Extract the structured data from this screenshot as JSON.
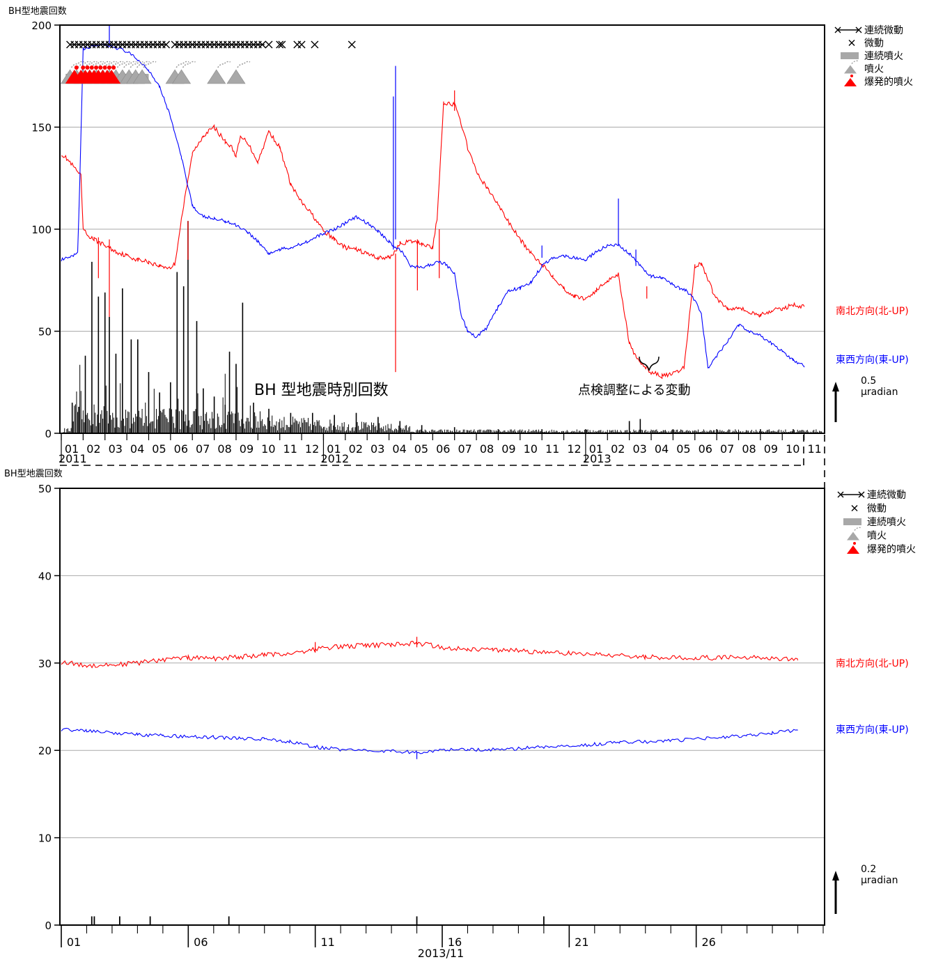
{
  "figure": {
    "top_title": "BH型地震回数",
    "bottom_title": "BH型地震回数",
    "annotation_histogram": "BH 型地震時別回数",
    "annotation_adjust": "点検調整による変動"
  },
  "colors": {
    "ns": "#ff0000",
    "ew": "#0000ff",
    "bars": "#000000",
    "grid": "#aaaaaa",
    "eruption_gray": "#a8a8a8",
    "explosive_red": "#ff0000"
  },
  "legend": {
    "items": [
      {
        "label": "連続微動",
        "icon": "x-line-x-icon"
      },
      {
        "label": "微動",
        "icon": "x-icon"
      },
      {
        "label": "連続噴火",
        "icon": "gray-bar-icon"
      },
      {
        "label": "噴火",
        "icon": "gray-volcano-icon"
      },
      {
        "label": "爆発的噴火",
        "icon": "red-volcano-icon"
      }
    ]
  },
  "chart_data": [
    {
      "type": "line",
      "ylabel": "BH型地震回数",
      "ylim": [
        0,
        200
      ],
      "yticks": [
        0,
        50,
        100,
        150,
        200
      ],
      "grid": true,
      "x_period": [
        "2011-01",
        "2013-11"
      ],
      "month_ticks": [
        "01",
        "02",
        "03",
        "04",
        "05",
        "06",
        "07",
        "08",
        "09",
        "10",
        "11",
        "12",
        "01",
        "02",
        "03",
        "04",
        "05",
        "06",
        "07",
        "08",
        "09",
        "10",
        "11",
        "12",
        "01",
        "02",
        "03",
        "04",
        "05",
        "06",
        "07",
        "08",
        "09",
        "10",
        "11"
      ],
      "year_labels": [
        "2011",
        "2012",
        "2013"
      ],
      "scale_bar": {
        "value": "0.5",
        "unit": "μradian"
      },
      "series": [
        {
          "name": "南北方向(北-UP)",
          "color": "#ff0000",
          "x_months": [
            0,
            0.3,
            0.6,
            0.9,
            1.0,
            1.2,
            1.5,
            2.0,
            2.5,
            3.0,
            3.5,
            4.0,
            4.5,
            5.0,
            5.2,
            5.5,
            6.0,
            6.5,
            7.0,
            7.5,
            7.8,
            8.0,
            8.2,
            8.5,
            9.0,
            9.5,
            10.0,
            10.5,
            11.0,
            11.5,
            12.0,
            12.5,
            13.0,
            13.5,
            14.0,
            14.5,
            15.0,
            15.2,
            15.5,
            16.0,
            16.5,
            17.0,
            17.2,
            17.5,
            18.0,
            18.3,
            18.6,
            19.0,
            19.5,
            20.0,
            20.5,
            21.0,
            21.5,
            22.0,
            22.5,
            23.0,
            23.5,
            24.0,
            24.5,
            25.0,
            25.5,
            26.0,
            26.3,
            26.5,
            26.8,
            27.0,
            27.5,
            28.0,
            28.5,
            29.0,
            29.3,
            29.5,
            29.8,
            30.0,
            30.5,
            31.0,
            31.5,
            32.0,
            32.5,
            33.0,
            33.5,
            34.0
          ],
          "values": [
            137,
            134,
            130,
            126,
            100,
            97,
            95,
            92,
            89,
            87,
            85,
            84,
            82,
            81,
            83,
            105,
            137,
            146,
            150,
            143,
            140,
            136,
            145,
            143,
            133,
            148,
            140,
            122,
            113,
            107,
            99,
            95,
            91,
            90,
            88,
            86,
            86,
            88,
            93,
            94,
            93,
            91,
            105,
            162,
            161,
            152,
            140,
            128,
            120,
            112,
            103,
            95,
            88,
            83,
            77,
            71,
            67,
            66,
            70,
            75,
            78,
            44,
            37,
            35,
            32,
            30,
            28,
            29,
            32,
            82,
            83,
            78,
            70,
            66,
            61,
            62,
            59,
            58,
            60,
            61,
            63,
            62
          ]
        },
        {
          "name": "東西方向(東-UP)",
          "color": "#0000ff",
          "x_months": [
            0,
            0.4,
            0.75,
            0.85,
            1.0,
            1.5,
            2.0,
            2.5,
            3.0,
            3.5,
            4.0,
            4.5,
            5.0,
            5.5,
            6.0,
            6.3,
            6.6,
            7.0,
            7.5,
            8.0,
            8.5,
            9.0,
            9.5,
            10.0,
            10.5,
            11.0,
            11.5,
            12.0,
            12.5,
            13.0,
            13.5,
            14.0,
            14.5,
            15.0,
            15.3,
            15.6,
            16.0,
            16.5,
            17.0,
            17.3,
            17.6,
            18.0,
            18.3,
            18.6,
            19.0,
            19.5,
            20.0,
            20.5,
            21.0,
            21.5,
            22.0,
            22.5,
            23.0,
            23.5,
            24.0,
            24.5,
            25.0,
            25.5,
            26.0,
            26.5,
            27.0,
            27.5,
            28.0,
            28.3,
            28.6,
            29.0,
            29.3,
            29.6,
            30.0,
            30.5,
            31.0,
            31.5,
            32.0,
            32.5,
            33.0,
            33.5,
            34.0
          ],
          "values": [
            85,
            86,
            88,
            125,
            188,
            190,
            190,
            189,
            187,
            183,
            178,
            170,
            155,
            135,
            112,
            107,
            106,
            105,
            104,
            102,
            99,
            94,
            88,
            90,
            91,
            93,
            95,
            98,
            100,
            103,
            106,
            103,
            99,
            94,
            91,
            89,
            82,
            81,
            83,
            84,
            83,
            78,
            58,
            50,
            47,
            52,
            62,
            70,
            71,
            74,
            82,
            86,
            87,
            86,
            85,
            89,
            92,
            92,
            88,
            82,
            77,
            76,
            73,
            71,
            70,
            65,
            58,
            32,
            38,
            45,
            53,
            50,
            48,
            44,
            40,
            36,
            33
          ]
        }
      ],
      "histogram_peaks_month_values": [
        [
          0.5,
          15
        ],
        [
          0.8,
          13
        ],
        [
          1.1,
          38
        ],
        [
          1.4,
          84
        ],
        [
          1.7,
          67
        ],
        [
          2.0,
          69
        ],
        [
          2.2,
          57
        ],
        [
          2.5,
          39
        ],
        [
          2.8,
          71
        ],
        [
          3.2,
          46
        ],
        [
          3.5,
          46
        ],
        [
          4.0,
          30
        ],
        [
          4.5,
          20
        ],
        [
          5.0,
          25
        ],
        [
          5.3,
          79
        ],
        [
          5.6,
          72
        ],
        [
          5.8,
          104
        ],
        [
          6.2,
          55
        ],
        [
          6.5,
          22
        ],
        [
          7.0,
          18
        ],
        [
          7.5,
          14
        ],
        [
          7.7,
          40
        ],
        [
          8.0,
          34
        ],
        [
          8.3,
          64
        ],
        [
          8.8,
          15
        ],
        [
          9.5,
          12
        ],
        [
          10.5,
          10
        ],
        [
          11.5,
          10
        ],
        [
          12.5,
          9
        ],
        [
          13.5,
          10
        ],
        [
          14.5,
          8
        ],
        [
          15.5,
          6
        ],
        [
          16.5,
          4
        ],
        [
          18,
          3
        ],
        [
          20,
          2
        ],
        [
          22,
          2
        ],
        [
          24,
          2
        ],
        [
          26,
          6
        ],
        [
          26.5,
          7
        ],
        [
          28,
          2
        ],
        [
          30,
          2
        ],
        [
          32,
          2
        ],
        [
          33.5,
          2
        ]
      ],
      "tremor_marks_months": [
        0.4,
        0.6,
        0.8,
        1.0,
        1.2,
        1.4,
        1.6,
        1.8,
        2.0,
        2.2,
        2.4,
        2.6,
        2.8,
        3.0,
        3.2,
        3.4,
        3.6,
        3.8,
        4.0,
        4.2,
        4.4,
        4.6,
        4.8,
        5.2,
        5.4,
        5.6,
        5.8,
        6.0,
        6.2,
        6.4,
        6.6,
        6.8,
        7.0,
        7.2,
        7.4,
        7.6,
        7.8,
        8.0,
        8.2,
        8.4,
        8.6,
        8.8,
        9.0,
        9.2,
        9.5,
        10.0,
        10.1,
        10.8,
        11.0,
        11.6,
        13.3
      ],
      "continuous_tremor_segments": [
        [
          0.4,
          4.8
        ],
        [
          5.2,
          9.3
        ]
      ],
      "eruption_months": [
        0.4,
        0.7,
        1.0,
        1.3,
        1.6,
        1.9,
        2.2,
        2.5,
        2.8,
        3.1,
        3.4,
        3.7,
        5.2,
        5.5,
        7.1,
        8.0
      ],
      "explosive_eruption_months": [
        0.6,
        0.9,
        1.1,
        1.3,
        1.5,
        1.7,
        1.9,
        2.1,
        2.3
      ],
      "continuous_eruption_span_months": [
        0.2,
        4.0
      ]
    },
    {
      "type": "line",
      "ylabel": "BH型地震回数",
      "ylim": [
        0,
        50
      ],
      "yticks": [
        0,
        10,
        20,
        30,
        40,
        50
      ],
      "grid": true,
      "x_period": [
        "2013-11-01",
        "2013-11-30"
      ],
      "day_labels": [
        "01",
        "06",
        "11",
        "16",
        "21",
        "26"
      ],
      "date_label": "2013/11",
      "scale_bar": {
        "value": "0.2",
        "unit": "μradian"
      },
      "series": [
        {
          "name": "南北方向(北-UP)",
          "color": "#ff0000",
          "x_days": [
            1,
            2,
            3,
            4,
            5,
            6,
            7,
            8,
            9,
            10,
            11,
            12,
            13,
            14,
            15,
            16,
            17,
            18,
            19,
            20,
            21,
            22,
            23,
            24,
            25,
            26,
            27,
            28,
            29,
            30
          ],
          "values": [
            30.1,
            29.7,
            29.8,
            30.0,
            30.4,
            30.6,
            30.5,
            30.7,
            30.9,
            31.1,
            31.6,
            31.9,
            32.0,
            32.1,
            32.3,
            31.8,
            31.6,
            31.5,
            31.4,
            31.2,
            31.1,
            31.0,
            30.9,
            30.7,
            30.6,
            30.6,
            30.6,
            30.7,
            30.6,
            30.3
          ]
        },
        {
          "name": "東西方向(東-UP)",
          "color": "#0000ff",
          "x_days": [
            1,
            2,
            3,
            4,
            5,
            6,
            7,
            8,
            9,
            10,
            11,
            12,
            13,
            14,
            15,
            16,
            17,
            18,
            19,
            20,
            21,
            22,
            23,
            24,
            25,
            26,
            27,
            28,
            29,
            30
          ],
          "values": [
            22.4,
            22.2,
            22.0,
            21.8,
            21.7,
            21.6,
            21.5,
            21.4,
            21.3,
            21.0,
            20.4,
            20.1,
            20.0,
            19.9,
            19.8,
            20.0,
            20.1,
            20.1,
            20.2,
            20.4,
            20.5,
            20.7,
            20.9,
            21.0,
            21.1,
            21.3,
            21.5,
            21.7,
            22.0,
            22.3
          ]
        }
      ],
      "histogram_days_values": [
        [
          2.2,
          1
        ],
        [
          2.3,
          1
        ],
        [
          3.3,
          1
        ],
        [
          4.5,
          1
        ],
        [
          7.6,
          1
        ],
        [
          15.0,
          1
        ],
        [
          20.0,
          1
        ]
      ]
    }
  ]
}
